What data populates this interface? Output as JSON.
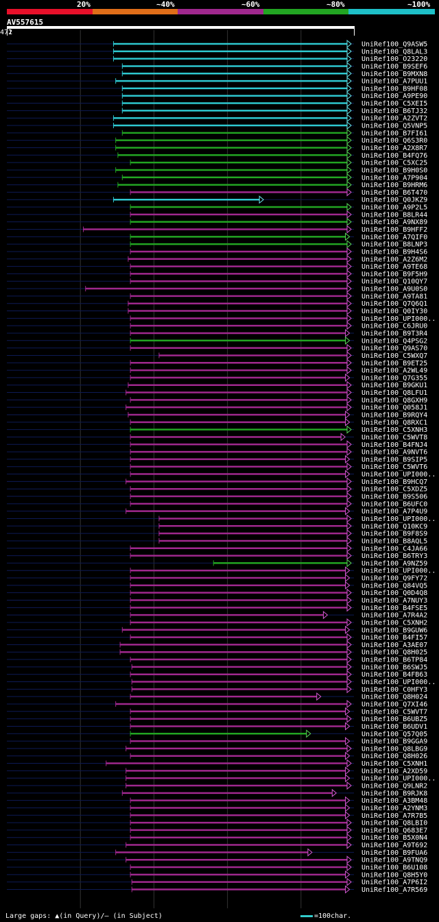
{
  "legend": {
    "labels": [
      "20%",
      "~40%",
      "~60%",
      "~80%",
      "~100%"
    ],
    "colors": [
      "#e8102a",
      "#e06e19",
      "#a0288e",
      "#22a522",
      "#1ec0c8"
    ]
  },
  "query": {
    "id": "AV557615",
    "start": "1",
    "end": "472"
  },
  "footer": {
    "gaps": "Large gaps: ▲(in Query)/– (in Subject)",
    "scale": "=100char."
  },
  "chart_data": {
    "type": "alignment",
    "query_length": 472,
    "hits": [
      {
        "name": "UniRef100_Q9ASW5",
        "start": 145,
        "end": 492,
        "color": "cyan"
      },
      {
        "name": "UniRef100_Q8LAL3",
        "start": 145,
        "end": 492,
        "color": "cyan"
      },
      {
        "name": "UniRef100_O23220",
        "start": 145,
        "end": 492,
        "color": "cyan"
      },
      {
        "name": "UniRef100_B9SEF6",
        "start": 157,
        "end": 492,
        "color": "cyan"
      },
      {
        "name": "UniRef100_B9MXN8",
        "start": 157,
        "end": 492,
        "color": "cyan"
      },
      {
        "name": "UniRef100_A7PUU1",
        "start": 148,
        "end": 492,
        "color": "cyan"
      },
      {
        "name": "UniRef100_B9HF08",
        "start": 157,
        "end": 492,
        "color": "cyan"
      },
      {
        "name": "UniRef100_A9PE90",
        "start": 157,
        "end": 492,
        "color": "cyan"
      },
      {
        "name": "UniRef100_C5XEI5",
        "start": 157,
        "end": 492,
        "color": "cyan"
      },
      {
        "name": "UniRef100_B6TJ32",
        "start": 157,
        "end": 492,
        "color": "cyan"
      },
      {
        "name": "UniRef100_A2ZVT2",
        "start": 145,
        "end": 492,
        "color": "cyan"
      },
      {
        "name": "UniRef100_Q5VNP5",
        "start": 145,
        "end": 492,
        "color": "cyan"
      },
      {
        "name": "UniRef100_B7FI61",
        "start": 157,
        "end": 484,
        "color": "green"
      },
      {
        "name": "UniRef100_Q6S3R0",
        "start": 148,
        "end": 492,
        "color": "green"
      },
      {
        "name": "UniRef100_A2X8R7",
        "start": 148,
        "end": 492,
        "color": "green"
      },
      {
        "name": "UniRef100_B4FQ76",
        "start": 151,
        "end": 492,
        "color": "green"
      },
      {
        "name": "UniRef100_C5XC25",
        "start": 168,
        "end": 484,
        "color": "green"
      },
      {
        "name": "UniRef100_B9H0S0",
        "start": 148,
        "end": 492,
        "color": "green"
      },
      {
        "name": "UniRef100_A7P904",
        "start": 157,
        "end": 478,
        "color": "green"
      },
      {
        "name": "UniRef100_B9HRM6",
        "start": 151,
        "end": 484,
        "color": "green"
      },
      {
        "name": "UniRef100_B6T470",
        "start": 168,
        "end": 484,
        "color": "magenta"
      },
      {
        "name": "UniRef100_Q0JKZ9",
        "start": 145,
        "end": 349,
        "color": "cyan"
      },
      {
        "name": "UniRef100_A9P2L5",
        "start": 168,
        "end": 484,
        "color": "green"
      },
      {
        "name": "UniRef100_B8LR44",
        "start": 168,
        "end": 478,
        "color": "magenta"
      },
      {
        "name": "UniRef100_A9NX89",
        "start": 168,
        "end": 478,
        "color": "green"
      },
      {
        "name": "UniRef100_B9HFF2",
        "start": 104,
        "end": 478,
        "color": "magenta"
      },
      {
        "name": "UniRef100_A7QIF0",
        "start": 168,
        "end": 466,
        "color": "green"
      },
      {
        "name": "UniRef100_B8LNP3",
        "start": 168,
        "end": 484,
        "color": "green"
      },
      {
        "name": "UniRef100_B9H4S6",
        "start": 168,
        "end": 478,
        "color": "magenta"
      },
      {
        "name": "UniRef100_A2Z6M2",
        "start": 165,
        "end": 478,
        "color": "magenta"
      },
      {
        "name": "UniRef100_A9TE68",
        "start": 168,
        "end": 492,
        "color": "magenta"
      },
      {
        "name": "UniRef100_B9F5H9",
        "start": 168,
        "end": 478,
        "color": "magenta"
      },
      {
        "name": "UniRef100_Q10QY7",
        "start": 168,
        "end": 478,
        "color": "magenta"
      },
      {
        "name": "UniRef100_A9U0S0",
        "start": 107,
        "end": 478,
        "color": "magenta"
      },
      {
        "name": "UniRef100_A9TA81",
        "start": 168,
        "end": 492,
        "color": "magenta"
      },
      {
        "name": "UniRef100_Q7Q6Q1",
        "start": 165,
        "end": 478,
        "color": "magenta"
      },
      {
        "name": "UniRef100_Q0IY30",
        "start": 165,
        "end": 478,
        "color": "magenta"
      },
      {
        "name": "UniRef100_UPI000..",
        "start": 168,
        "end": 484,
        "color": "magenta"
      },
      {
        "name": "UniRef100_C6JRU0",
        "start": 168,
        "end": 478,
        "color": "magenta"
      },
      {
        "name": "UniRef100_B9T3R4",
        "start": 168,
        "end": 466,
        "color": "magenta"
      },
      {
        "name": "UniRef100_Q4PSG2",
        "start": 168,
        "end": 466,
        "color": "green"
      },
      {
        "name": "UniRef100_Q9AS70",
        "start": 168,
        "end": 490,
        "color": "magenta"
      },
      {
        "name": "UniRef100_C5WXQ7",
        "start": 207,
        "end": 490,
        "color": "magenta"
      },
      {
        "name": "UniRef100_B9ET25",
        "start": 168,
        "end": 490,
        "color": "magenta"
      },
      {
        "name": "UniRef100_A2WL49",
        "start": 168,
        "end": 490,
        "color": "magenta"
      },
      {
        "name": "UniRef100_Q7G355",
        "start": 168,
        "end": 466,
        "color": "magenta"
      },
      {
        "name": "UniRef100_B9GKU1",
        "start": 165,
        "end": 484,
        "color": "magenta"
      },
      {
        "name": "UniRef100_Q8LFU1",
        "start": 162,
        "end": 478,
        "color": "magenta"
      },
      {
        "name": "UniRef100_Q8GXH9",
        "start": 168,
        "end": 472,
        "color": "magenta"
      },
      {
        "name": "UniRef100_Q058J1",
        "start": 162,
        "end": 478,
        "color": "magenta"
      },
      {
        "name": "UniRef100_B9RQY4",
        "start": 165,
        "end": 466,
        "color": "magenta"
      },
      {
        "name": "UniRef100_Q8RXC1",
        "start": 168,
        "end": 466,
        "color": "magenta"
      },
      {
        "name": "UniRef100_C5XNH3",
        "start": 168,
        "end": 484,
        "color": "green"
      },
      {
        "name": "UniRef100_C5WVT8",
        "start": 168,
        "end": 460,
        "color": "magenta"
      },
      {
        "name": "UniRef100_B4FNJ4",
        "start": 168,
        "end": 472,
        "color": "magenta"
      },
      {
        "name": "UniRef100_A9NVT6",
        "start": 168,
        "end": 490,
        "color": "magenta"
      },
      {
        "name": "UniRef100_B9SIP5",
        "start": 168,
        "end": 466,
        "color": "magenta"
      },
      {
        "name": "UniRef100_C5WVT6",
        "start": 168,
        "end": 484,
        "color": "magenta"
      },
      {
        "name": "UniRef100_UPI000..",
        "start": 168,
        "end": 466,
        "color": "magenta"
      },
      {
        "name": "UniRef100_B9HCQ7",
        "start": 162,
        "end": 472,
        "color": "magenta"
      },
      {
        "name": "UniRef100_C5XDZ5",
        "start": 168,
        "end": 492,
        "color": "magenta"
      },
      {
        "name": "UniRef100_B9S506",
        "start": 168,
        "end": 492,
        "color": "magenta"
      },
      {
        "name": "UniRef100_B6UFC0",
        "start": 168,
        "end": 484,
        "color": "magenta"
      },
      {
        "name": "UniRef100_A7P4U9",
        "start": 162,
        "end": 466,
        "color": "magenta"
      },
      {
        "name": "UniRef100_UPI000..",
        "start": 207,
        "end": 490,
        "color": "magenta"
      },
      {
        "name": "UniRef100_Q10KC9",
        "start": 207,
        "end": 490,
        "color": "magenta"
      },
      {
        "name": "UniRef100_B9F8S9",
        "start": 207,
        "end": 490,
        "color": "magenta"
      },
      {
        "name": "UniRef100_B8AQL5",
        "start": 207,
        "end": 490,
        "color": "magenta"
      },
      {
        "name": "UniRef100_C4JA66",
        "start": 168,
        "end": 478,
        "color": "magenta"
      },
      {
        "name": "UniRef100_B6TRY3",
        "start": 168,
        "end": 478,
        "color": "magenta"
      },
      {
        "name": "UniRef100_A9NZ59",
        "start": 281,
        "end": 492,
        "color": "green"
      },
      {
        "name": "UniRef100_UPI000..",
        "start": 168,
        "end": 466,
        "color": "magenta"
      },
      {
        "name": "UniRef100_Q9FY72",
        "start": 168,
        "end": 466,
        "color": "magenta"
      },
      {
        "name": "UniRef100_Q84VQ5",
        "start": 168,
        "end": 466,
        "color": "magenta"
      },
      {
        "name": "UniRef100_Q0D4Q8",
        "start": 168,
        "end": 490,
        "color": "magenta"
      },
      {
        "name": "UniRef100_A7NUY3",
        "start": 168,
        "end": 484,
        "color": "magenta"
      },
      {
        "name": "UniRef100_B4FSE5",
        "start": 168,
        "end": 484,
        "color": "magenta"
      },
      {
        "name": "UniRef100_A7R4A2",
        "start": 168,
        "end": 436,
        "color": "magenta"
      },
      {
        "name": "UniRef100_C5XNH2",
        "start": 168,
        "end": 490,
        "color": "magenta"
      },
      {
        "name": "UniRef100_B9GUW6",
        "start": 157,
        "end": 466,
        "color": "magenta"
      },
      {
        "name": "UniRef100_B4FI57",
        "start": 168,
        "end": 492,
        "color": "magenta"
      },
      {
        "name": "UniRef100_A3AE07",
        "start": 154,
        "end": 478,
        "color": "magenta"
      },
      {
        "name": "UniRef100_Q8H025",
        "start": 154,
        "end": 478,
        "color": "magenta"
      },
      {
        "name": "UniRef100_B6TP84",
        "start": 168,
        "end": 484,
        "color": "magenta"
      },
      {
        "name": "UniRef100_B6SWJ5",
        "start": 170,
        "end": 484,
        "color": "magenta"
      },
      {
        "name": "UniRef100_B4FB63",
        "start": 168,
        "end": 490,
        "color": "magenta"
      },
      {
        "name": "UniRef100_UPI000..",
        "start": 170,
        "end": 478,
        "color": "magenta"
      },
      {
        "name": "UniRef100_C0HFY3",
        "start": 170,
        "end": 478,
        "color": "magenta"
      },
      {
        "name": "UniRef100_Q8H024",
        "start": 168,
        "end": 427,
        "color": "magenta"
      },
      {
        "name": "UniRef100_Q7XI46",
        "start": 148,
        "end": 478,
        "color": "magenta"
      },
      {
        "name": "UniRef100_C5WVT7",
        "start": 168,
        "end": 466,
        "color": "magenta"
      },
      {
        "name": "UniRef100_B6UBZ5",
        "start": 168,
        "end": 484,
        "color": "magenta"
      },
      {
        "name": "UniRef100_B6UDV1",
        "start": 168,
        "end": 466,
        "color": "magenta"
      },
      {
        "name": "UniRef100_Q57Q05",
        "start": 168,
        "end": 413,
        "color": "green"
      },
      {
        "name": "UniRef100_B9GGA9",
        "start": 168,
        "end": 466,
        "color": "magenta"
      },
      {
        "name": "UniRef100_Q8LBG9",
        "start": 162,
        "end": 472,
        "color": "magenta"
      },
      {
        "name": "UniRef100_Q8H026",
        "start": 168,
        "end": 466,
        "color": "magenta"
      },
      {
        "name": "UniRef100_C5XNH1",
        "start": 135,
        "end": 490,
        "color": "magenta"
      },
      {
        "name": "UniRef100_A2XD59",
        "start": 162,
        "end": 466,
        "color": "magenta"
      },
      {
        "name": "UniRef100_UPI000..",
        "start": 162,
        "end": 466,
        "color": "magenta"
      },
      {
        "name": "UniRef100_Q9LNR2",
        "start": 162,
        "end": 472,
        "color": "magenta"
      },
      {
        "name": "UniRef100_B9RJK8",
        "start": 157,
        "end": 448,
        "color": "magenta"
      },
      {
        "name": "UniRef100_A3BM48",
        "start": 168,
        "end": 466,
        "color": "magenta"
      },
      {
        "name": "UniRef100_A2YNM3",
        "start": 168,
        "end": 466,
        "color": "magenta"
      },
      {
        "name": "UniRef100_A7R7B5",
        "start": 168,
        "end": 466,
        "color": "magenta"
      },
      {
        "name": "UniRef100_Q8LBI0",
        "start": 168,
        "end": 472,
        "color": "magenta"
      },
      {
        "name": "UniRef100_Q683E7",
        "start": 168,
        "end": 472,
        "color": "magenta"
      },
      {
        "name": "UniRef100_B5X0N4",
        "start": 168,
        "end": 472,
        "color": "magenta"
      },
      {
        "name": "UniRef100_A9T692",
        "start": 162,
        "end": 484,
        "color": "magenta"
      },
      {
        "name": "UniRef100_B9FUA6",
        "start": 148,
        "end": 415,
        "color": "magenta"
      },
      {
        "name": "UniRef100_A9TNQ9",
        "start": 162,
        "end": 490,
        "color": "magenta"
      },
      {
        "name": "UniRef100_B6U108",
        "start": 168,
        "end": 484,
        "color": "magenta"
      },
      {
        "name": "UniRef100_Q8H5Y0",
        "start": 168,
        "end": 466,
        "color": "magenta"
      },
      {
        "name": "UniRef100_A7P6I2",
        "start": 170,
        "end": 472,
        "color": "magenta"
      },
      {
        "name": "UniRef100_A7R569",
        "start": 170,
        "end": 466,
        "color": "magenta"
      }
    ]
  }
}
